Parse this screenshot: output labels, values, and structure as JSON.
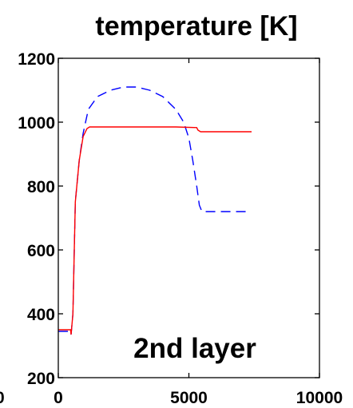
{
  "chart_data": {
    "type": "line",
    "title": "temperature [K]",
    "xlabel": "",
    "ylabel": "",
    "xlim": [
      0,
      10000
    ],
    "ylim": [
      200,
      1200
    ],
    "x_ticks": [
      0,
      5000,
      10000
    ],
    "y_ticks": [
      200,
      400,
      600,
      800,
      1000,
      1200
    ],
    "left_edge_tick_fragment": "0",
    "annotation": "2nd layer",
    "grid": false,
    "series": [
      {
        "color": "#0000ff",
        "line_style": "dashed",
        "x": [
          0,
          470,
          490,
          560,
          650,
          800,
          950,
          1150,
          1500,
          2000,
          2500,
          3000,
          3500,
          4000,
          4500,
          4800,
          5000,
          5150,
          5300,
          5400,
          5500,
          5700,
          6500,
          7200
        ],
        "y": [
          345,
          345,
          335,
          400,
          750,
          880,
          965,
          1040,
          1080,
          1100,
          1110,
          1110,
          1100,
          1080,
          1040,
          1000,
          950,
          880,
          800,
          740,
          720,
          720,
          720,
          720
        ]
      },
      {
        "color": "#ff0000",
        "line_style": "solid",
        "x": [
          0,
          470,
          490,
          560,
          650,
          800,
          950,
          1100,
          1200,
          1500,
          3000,
          4500,
          5300,
          5350,
          5450,
          6000,
          7400
        ],
        "y": [
          350,
          350,
          335,
          400,
          750,
          880,
          955,
          980,
          985,
          985,
          985,
          985,
          983,
          975,
          970,
          970,
          970
        ]
      }
    ]
  }
}
